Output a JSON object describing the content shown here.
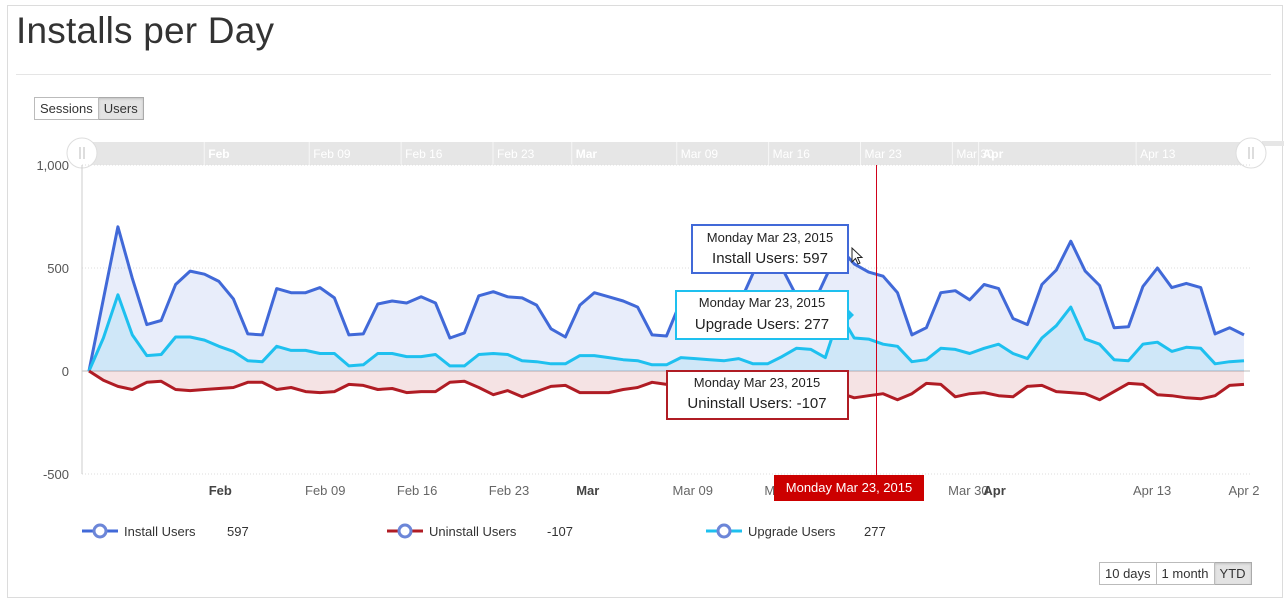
{
  "page": {
    "title": "Installs per Day"
  },
  "toggle": {
    "sessions_label": "Sessions",
    "users_label": "Users"
  },
  "range_buttons": {
    "ten_days": "10 days",
    "one_month": "1 month",
    "ytd": "YTD"
  },
  "colors": {
    "install": "#4169d8",
    "upgrade": "#1ec0ef",
    "uninstall": "#b01c24",
    "crosshair": "#d0021b"
  },
  "tooltips": {
    "install": {
      "date": "Monday Mar 23, 2015",
      "text": "Install Users: 597"
    },
    "upgrade": {
      "date": "Monday Mar 23, 2015",
      "text": "Upgrade Users: 277"
    },
    "uninstall": {
      "date": "Monday Mar 23, 2015",
      "text": "Uninstall Users: -107"
    }
  },
  "crosshair_label": "Monday Mar 23, 2015",
  "legend": [
    {
      "name": "Install Users",
      "value": "597"
    },
    {
      "name": "Uninstall Users",
      "value": "-107"
    },
    {
      "name": "Upgrade Users",
      "value": "277"
    }
  ],
  "chart_data": {
    "type": "area",
    "title": "Installs per Day",
    "x_start": "2015-01-22",
    "x_end": "2015-04-20",
    "x_ticks": [
      "Feb",
      "Feb 09",
      "Feb 16",
      "Feb 23",
      "Mar",
      "Mar 09",
      "Mar 16",
      "Mar 23",
      "Mar 30",
      "Apr",
      "Apr 13",
      "Apr 2"
    ],
    "x_ticks_bold": [
      "Feb",
      "Mar",
      "Apr"
    ],
    "y_ticks": [
      "1,000",
      "500",
      "0",
      "-500"
    ],
    "ylim": [
      -500,
      1000
    ],
    "grid": true,
    "highlight_date": "2015-03-23",
    "series": [
      {
        "name": "Install Users",
        "values": [
          0,
          350,
          700,
          450,
          225,
          245,
          420,
          485,
          470,
          435,
          350,
          180,
          175,
          400,
          380,
          380,
          405,
          355,
          175,
          180,
          325,
          340,
          330,
          360,
          330,
          160,
          185,
          365,
          385,
          360,
          355,
          320,
          205,
          165,
          320,
          380,
          360,
          340,
          310,
          175,
          170,
          340,
          375,
          300,
          250,
          320,
          475,
          540,
          500,
          365,
          300,
          450,
          597,
          520,
          480,
          460,
          380,
          175,
          210,
          380,
          390,
          345,
          420,
          400,
          255,
          225,
          420,
          490,
          630,
          485,
          415,
          210,
          215,
          410,
          500,
          405,
          425,
          405,
          180,
          210,
          175
        ]
      },
      {
        "name": "Upgrade Users",
        "values": [
          0,
          160,
          370,
          175,
          75,
          80,
          165,
          165,
          150,
          120,
          95,
          50,
          45,
          120,
          100,
          100,
          85,
          85,
          25,
          30,
          85,
          85,
          70,
          70,
          80,
          25,
          25,
          80,
          85,
          80,
          50,
          45,
          35,
          35,
          75,
          75,
          65,
          55,
          50,
          30,
          30,
          65,
          60,
          55,
          50,
          60,
          35,
          35,
          70,
          110,
          105,
          65,
          277,
          160,
          155,
          130,
          120,
          45,
          55,
          110,
          105,
          85,
          110,
          130,
          85,
          60,
          160,
          220,
          310,
          155,
          130,
          55,
          50,
          130,
          140,
          95,
          115,
          110,
          35,
          45,
          50
        ]
      },
      {
        "name": "Uninstall Users",
        "values": [
          0,
          -45,
          -75,
          -90,
          -55,
          -50,
          -90,
          -95,
          -90,
          -85,
          -80,
          -55,
          -55,
          -90,
          -80,
          -100,
          -105,
          -100,
          -65,
          -70,
          -90,
          -85,
          -105,
          -100,
          -100,
          -55,
          -50,
          -80,
          -115,
          -95,
          -125,
          -100,
          -75,
          -70,
          -105,
          -105,
          -105,
          -90,
          -80,
          -55,
          -65,
          -95,
          -100,
          -110,
          -105,
          -100,
          -120,
          -130,
          -110,
          -110,
          -95,
          -107,
          -107,
          -130,
          -120,
          -110,
          -140,
          -110,
          -60,
          -65,
          -125,
          -110,
          -105,
          -120,
          -125,
          -75,
          -70,
          -100,
          -105,
          -110,
          -140,
          -100,
          -60,
          -65,
          -115,
          -120,
          -130,
          -135,
          -120,
          -70,
          -65
        ]
      }
    ]
  }
}
